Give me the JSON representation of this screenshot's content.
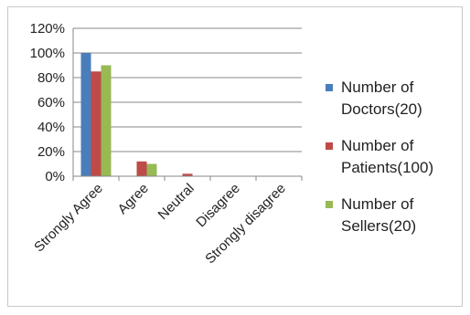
{
  "chart_data": {
    "type": "bar",
    "categories": [
      "Strongly Agree",
      "Agree",
      "Neutral",
      "Disagree",
      "Strongly disagree"
    ],
    "series": [
      {
        "name": "Number of Doctors(20)",
        "name_lines": [
          "Number of",
          "Doctors(20)"
        ],
        "color": "#4a7ebb",
        "values": [
          100,
          0,
          0,
          0,
          0
        ]
      },
      {
        "name": "Number of Patients(100)",
        "name_lines": [
          "Number of",
          "Patients(100)"
        ],
        "color": "#be4b48",
        "values": [
          85,
          12,
          2,
          0,
          0
        ]
      },
      {
        "name": "Number of Sellers(20)",
        "name_lines": [
          "Number of",
          "Sellers(20)"
        ],
        "color": "#98b954",
        "values": [
          90,
          10,
          0,
          0,
          0
        ]
      }
    ],
    "y_ticks": [
      "0%",
      "20%",
      "40%",
      "60%",
      "80%",
      "100%",
      "120%"
    ],
    "ylim": [
      0,
      120
    ],
    "y_unit": "%",
    "grid": true,
    "legend_position": "right"
  }
}
